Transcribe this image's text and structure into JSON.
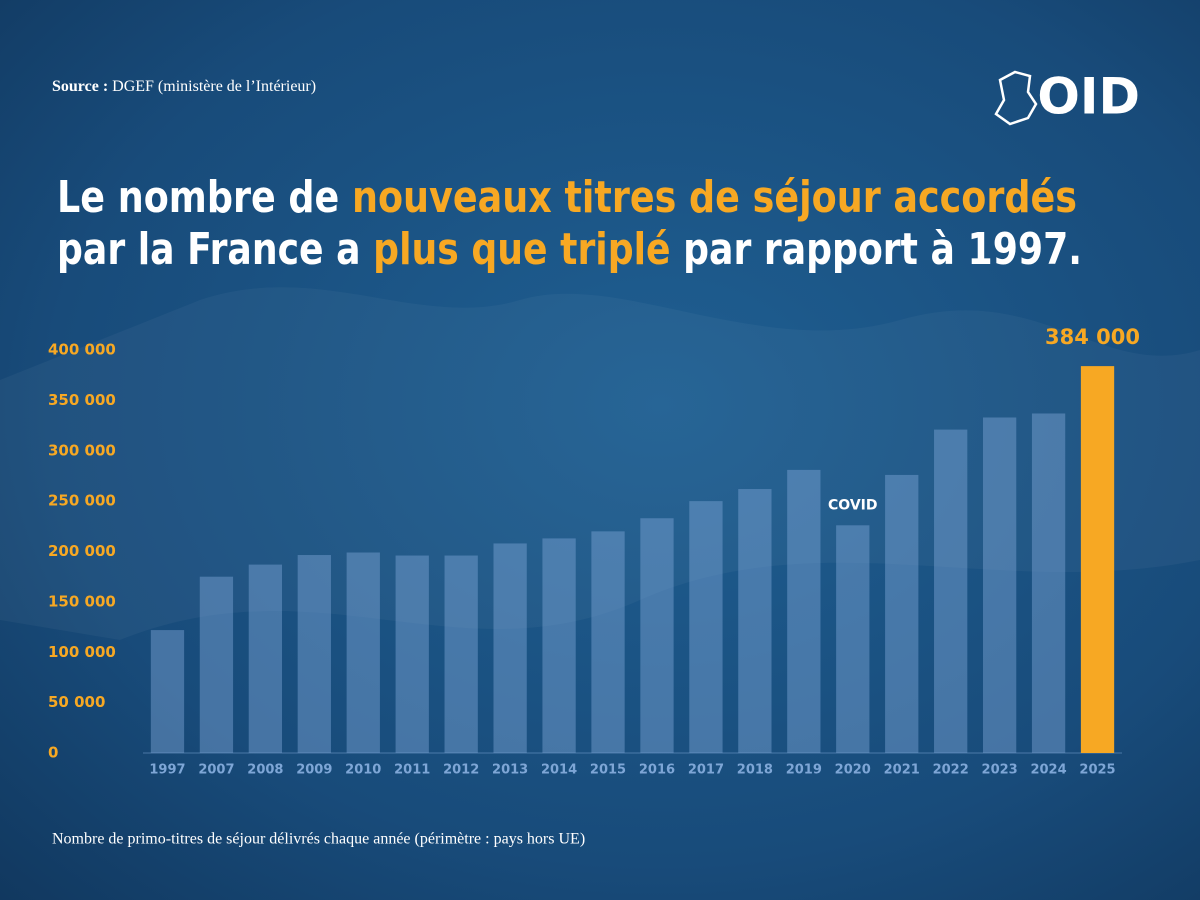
{
  "chart_data": {
    "type": "bar",
    "source_label": "Source :",
    "source": "DGEF (ministère de l’Intérieur)",
    "logo": "OID",
    "title_lines": [
      [
        {
          "text": "Le nombre de ",
          "highlight": false
        },
        {
          "text": "nouveaux titres de séjour accordés",
          "highlight": true
        }
      ],
      [
        {
          "text": "par la France a ",
          "highlight": false
        },
        {
          "text": "plus que triplé",
          "highlight": true
        },
        {
          "text": " par rapport à 1997.",
          "highlight": false
        }
      ]
    ],
    "note": "Nombre de primo-titres de séjour délivrés chaque année (périmètre : pays hors UE)",
    "categories": [
      "1997",
      "2007",
      "2008",
      "2009",
      "2010",
      "2011",
      "2012",
      "2013",
      "2014",
      "2015",
      "2016",
      "2017",
      "2018",
      "2019",
      "2020",
      "2021",
      "2022",
      "2023",
      "2024",
      "2025"
    ],
    "values": [
      122000,
      175000,
      187000,
      196500,
      199000,
      196000,
      196000,
      208000,
      213000,
      220000,
      233000,
      250000,
      262000,
      281000,
      226000,
      276000,
      321000,
      333000,
      337000,
      384000
    ],
    "value_labels": [
      null,
      null,
      null,
      null,
      null,
      null,
      null,
      null,
      null,
      null,
      null,
      null,
      null,
      null,
      null,
      null,
      null,
      null,
      null,
      "384 000"
    ],
    "colors": [
      "#7ea6d6",
      "#7ea6d6",
      "#7ea6d6",
      "#7ea6d6",
      "#7ea6d6",
      "#7ea6d6",
      "#7ea6d6",
      "#7ea6d6",
      "#7ea6d6",
      "#7ea6d6",
      "#7ea6d6",
      "#7ea6d6",
      "#7ea6d6",
      "#7ea6d6",
      "#7ea6d6",
      "#7ea6d6",
      "#7ea6d6",
      "#7ea6d6",
      "#7ea6d6",
      "#f7a823"
    ],
    "annotations": [
      {
        "text": "COVID",
        "category": "2020"
      }
    ],
    "ylim": [
      0,
      400000
    ],
    "yticks": [
      0,
      {
        "value": 50000,
        "label": "50 000"
      },
      {
        "value": 100000,
        "label": "100 000"
      },
      {
        "value": 150000,
        "label": "150 000"
      },
      {
        "value": 200000,
        "label": "200 000"
      },
      {
        "value": 250000,
        "label": "250 000"
      },
      {
        "value": 300000,
        "label": "300 000"
      },
      {
        "value": 350000,
        "label": "350 000"
      },
      {
        "value": 400000,
        "label": "400 000"
      }
    ],
    "grid": false
  }
}
